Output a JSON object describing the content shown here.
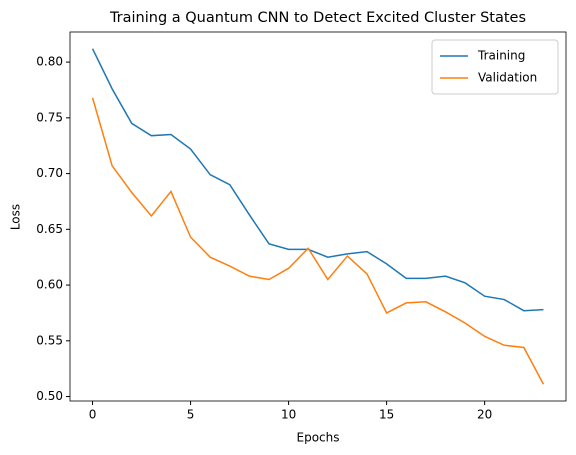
{
  "chart_data": {
    "type": "line",
    "title": "Training a Quantum CNN to Detect Excited Cluster States",
    "x_label": "Epochs",
    "y_label": "Loss",
    "x": [
      0,
      1,
      2,
      3,
      4,
      5,
      6,
      7,
      8,
      9,
      10,
      11,
      12,
      13,
      14,
      15,
      16,
      17,
      18,
      19,
      20,
      21,
      22,
      23
    ],
    "series": [
      {
        "name": "Training",
        "color": "#1f77b4",
        "values": [
          0.812,
          0.776,
          0.745,
          0.734,
          0.735,
          0.722,
          0.699,
          0.69,
          0.663,
          0.637,
          0.632,
          0.632,
          0.625,
          0.628,
          0.63,
          0.619,
          0.606,
          0.606,
          0.608,
          0.602,
          0.59,
          0.587,
          0.577,
          0.578
        ]
      },
      {
        "name": "Validation",
        "color": "#ff7f0e",
        "values": [
          0.768,
          0.707,
          0.683,
          0.662,
          0.684,
          0.643,
          0.625,
          0.617,
          0.608,
          0.605,
          0.615,
          0.633,
          0.605,
          0.626,
          0.61,
          0.575,
          0.584,
          0.585,
          0.576,
          0.566,
          0.554,
          0.546,
          0.544,
          0.511
        ]
      }
    ],
    "xlim": [
      -1.15,
      24.15
    ],
    "ylim": [
      0.496,
      0.827
    ],
    "xticks": [
      0,
      5,
      10,
      15,
      20
    ],
    "yticks": [
      {
        "value": 0.5,
        "label": "0.50"
      },
      {
        "value": 0.55,
        "label": "0.55"
      },
      {
        "value": 0.6,
        "label": "0.60"
      },
      {
        "value": 0.65,
        "label": "0.65"
      },
      {
        "value": 0.7,
        "label": "0.70"
      },
      {
        "value": 0.75,
        "label": "0.75"
      },
      {
        "value": 0.8,
        "label": "0.80"
      }
    ],
    "legend": "upper right"
  }
}
